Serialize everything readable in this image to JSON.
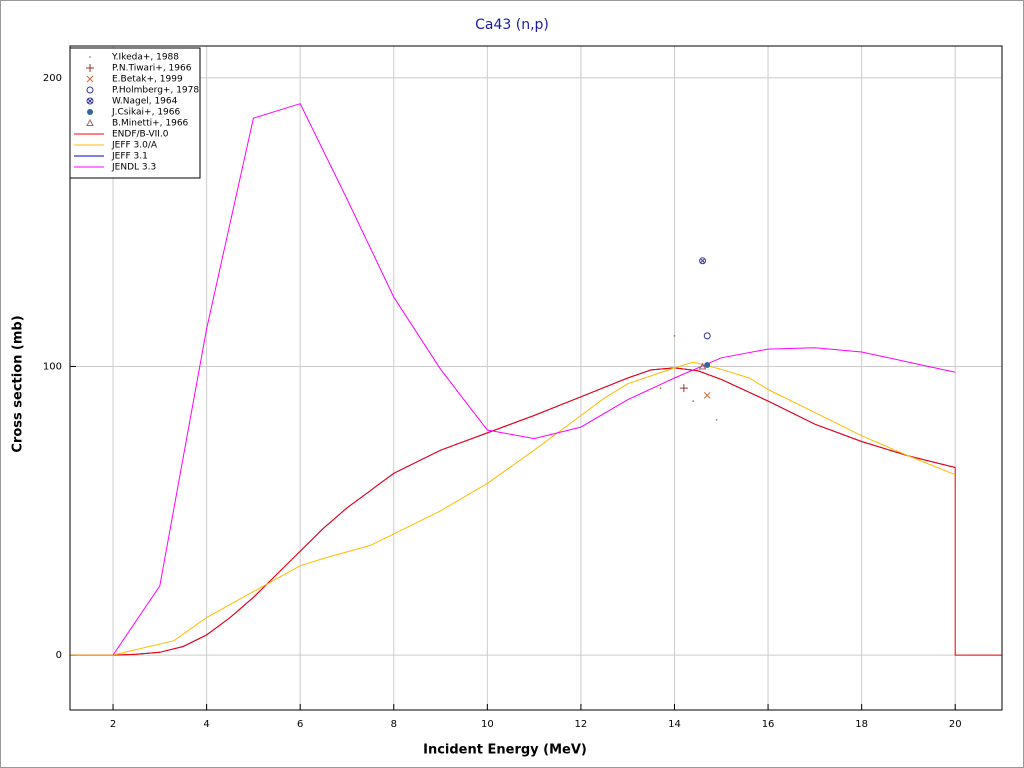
{
  "chart_data": {
    "type": "line",
    "title": "Ca43 (n,p)",
    "x_label": "Incident Energy (MeV)",
    "y_label": "Cross section (mb)",
    "xlim": [
      1.08,
      21
    ],
    "ylim": [
      -19,
      211
    ],
    "xticks": [
      2,
      4,
      6,
      8,
      10,
      12,
      14,
      16,
      18,
      20
    ],
    "yticks": [
      0,
      100,
      200
    ],
    "grid": true,
    "legend": "upper left",
    "series": [
      {
        "name": "Y.Ikeda+, 1988",
        "color": "#996633",
        "marker": "dot",
        "x": [
          13.7,
          14.0,
          14.4,
          14.9
        ],
        "values": [
          92.5,
          110.6,
          88,
          81.5
        ]
      },
      {
        "name": "P.N.Tiwari+, 1966",
        "color": "#993333",
        "marker": "plus",
        "x": [
          14.2
        ],
        "values": [
          92.5
        ]
      },
      {
        "name": "E.Betak+, 1999",
        "color": "#cc6633",
        "marker": "cross",
        "x": [
          14.7
        ],
        "values": [
          90
        ]
      },
      {
        "name": "P.Holmberg+, 1978",
        "color": "#333399",
        "marker": "circle",
        "x": [
          14.7
        ],
        "values": [
          110.6
        ]
      },
      {
        "name": "W.Nagel, 1964",
        "color": "#333399",
        "marker": "circle-x",
        "x": [
          14.6
        ],
        "values": [
          136.6
        ]
      },
      {
        "name": "J.Csikai+, 1966",
        "color": "#336699",
        "marker": "filled-circle",
        "x": [
          14.7
        ],
        "values": [
          100.5
        ]
      },
      {
        "name": "B.Minetti+, 1966",
        "color": "#996666",
        "marker": "triangle",
        "x": [
          14.6
        ],
        "values": [
          100
        ]
      },
      {
        "name": "ENDF/B-VII.0",
        "color": "#ff0000",
        "x": [
          1.08,
          2,
          2.5,
          3,
          3.5,
          4,
          4.5,
          5,
          5.5,
          6,
          6.5,
          7,
          7.5,
          8,
          9,
          10,
          11,
          12,
          13,
          13.5,
          14,
          14.5,
          15,
          16,
          17,
          18,
          19,
          20,
          20,
          21
        ],
        "values": [
          0,
          0,
          0.3,
          1,
          3,
          7,
          13,
          20,
          28,
          36,
          44,
          51,
          57,
          63,
          71,
          77,
          83,
          89.5,
          96,
          98.8,
          99.5,
          98.5,
          95.5,
          88,
          80,
          74,
          69,
          65,
          0,
          0
        ]
      },
      {
        "name": "JEFF 3.0/A",
        "color": "#ffbb00",
        "x": [
          1.08,
          2,
          3.3,
          4,
          5,
          6,
          6.5,
          7.5,
          8,
          9,
          10,
          11,
          12,
          12.5,
          13,
          14,
          14.4,
          15,
          15.6,
          16,
          17,
          18,
          19,
          20
        ],
        "values": [
          0,
          0,
          5,
          13,
          22,
          31,
          33.5,
          38,
          42,
          50,
          59.5,
          71,
          83,
          89,
          94,
          99.5,
          101.5,
          99,
          96,
          92,
          84,
          76,
          69,
          62.5
        ]
      },
      {
        "name": "JEFF 3.1",
        "color": "#0000cc",
        "x": [
          1.08,
          2,
          2.5,
          3,
          3.5,
          4,
          4.5,
          5,
          5.5,
          6,
          6.5,
          7,
          7.5,
          8,
          9,
          10,
          11,
          12,
          13,
          13.5,
          14,
          14.5,
          15,
          16,
          17,
          18,
          19,
          20
        ],
        "values": [
          0,
          0,
          0.3,
          1,
          3,
          7,
          13,
          20,
          28,
          36,
          44,
          51,
          57,
          63,
          71,
          77,
          83,
          89.5,
          96,
          98.8,
          99.5,
          98.5,
          95.5,
          88,
          80,
          74,
          69,
          65
        ]
      },
      {
        "name": "JENDL 3.3",
        "color": "#ff00ff",
        "x": [
          2,
          3,
          4,
          5,
          6,
          7,
          8,
          9,
          10,
          11,
          12,
          13,
          14,
          15,
          16,
          17,
          18,
          19,
          20
        ],
        "values": [
          0,
          24,
          113,
          186,
          191,
          158,
          124,
          99,
          78,
          75,
          79,
          88.5,
          96,
          103,
          106,
          106.5,
          105,
          101.5,
          98
        ]
      }
    ]
  }
}
